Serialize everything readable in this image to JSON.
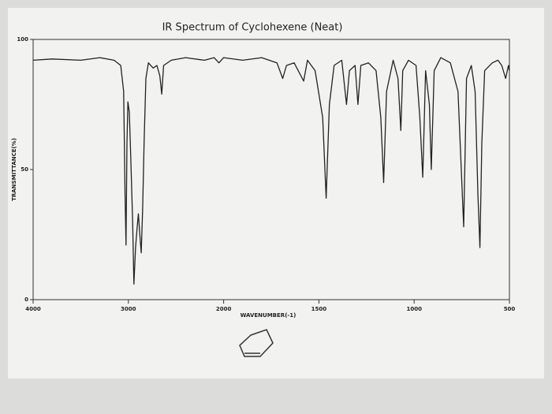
{
  "chart_data": {
    "type": "line",
    "title": "IR Spectrum of Cyclohexene (Neat)",
    "x_label": "WAVENUMBER(-1)",
    "y_label": "TRANSMITTANCE(%)",
    "xlim": [
      4000,
      500
    ],
    "xticks": [
      4000,
      3000,
      2000,
      1500,
      1000,
      500
    ],
    "ylim": [
      0,
      100
    ],
    "yticks": [
      0,
      50,
      100
    ],
    "color": "#222222",
    "x": [
      4000,
      3800,
      3500,
      3300,
      3150,
      3080,
      3050,
      3035,
      3025,
      3015,
      3005,
      2990,
      2975,
      2955,
      2942,
      2925,
      2910,
      2895,
      2880,
      2865,
      2850,
      2835,
      2816,
      2790,
      2740,
      2700,
      2670,
      2650,
      2630,
      2550,
      2400,
      2200,
      2100,
      2050,
      2000,
      1900,
      1800,
      1720,
      1690,
      1670,
      1630,
      1580,
      1560,
      1520,
      1480,
      1462,
      1445,
      1420,
      1380,
      1355,
      1340,
      1310,
      1295,
      1280,
      1240,
      1200,
      1175,
      1160,
      1145,
      1110,
      1085,
      1070,
      1060,
      1030,
      990,
      970,
      955,
      940,
      920,
      910,
      895,
      860,
      810,
      770,
      740,
      725,
      700,
      680,
      665,
      655,
      645,
      630,
      590,
      560,
      540,
      520,
      505,
      500
    ],
    "values": [
      92,
      92.5,
      92,
      93,
      92,
      90,
      80,
      40,
      21,
      60,
      76,
      72,
      55,
      30,
      6,
      20,
      27,
      33,
      25,
      18,
      35,
      60,
      85,
      91,
      89,
      90,
      86,
      79,
      90,
      92,
      93,
      92,
      93,
      91,
      93,
      92,
      93,
      91,
      85,
      90,
      91,
      84,
      92,
      88,
      70,
      39,
      75,
      90,
      92,
      75,
      88,
      90,
      75,
      90,
      91,
      88,
      70,
      45,
      80,
      92,
      85,
      65,
      88,
      92,
      90,
      70,
      47,
      88,
      75,
      50,
      88,
      93,
      91,
      80,
      28,
      85,
      90,
      80,
      40,
      20,
      60,
      88,
      91,
      92,
      90,
      85,
      90,
      88
    ]
  }
}
